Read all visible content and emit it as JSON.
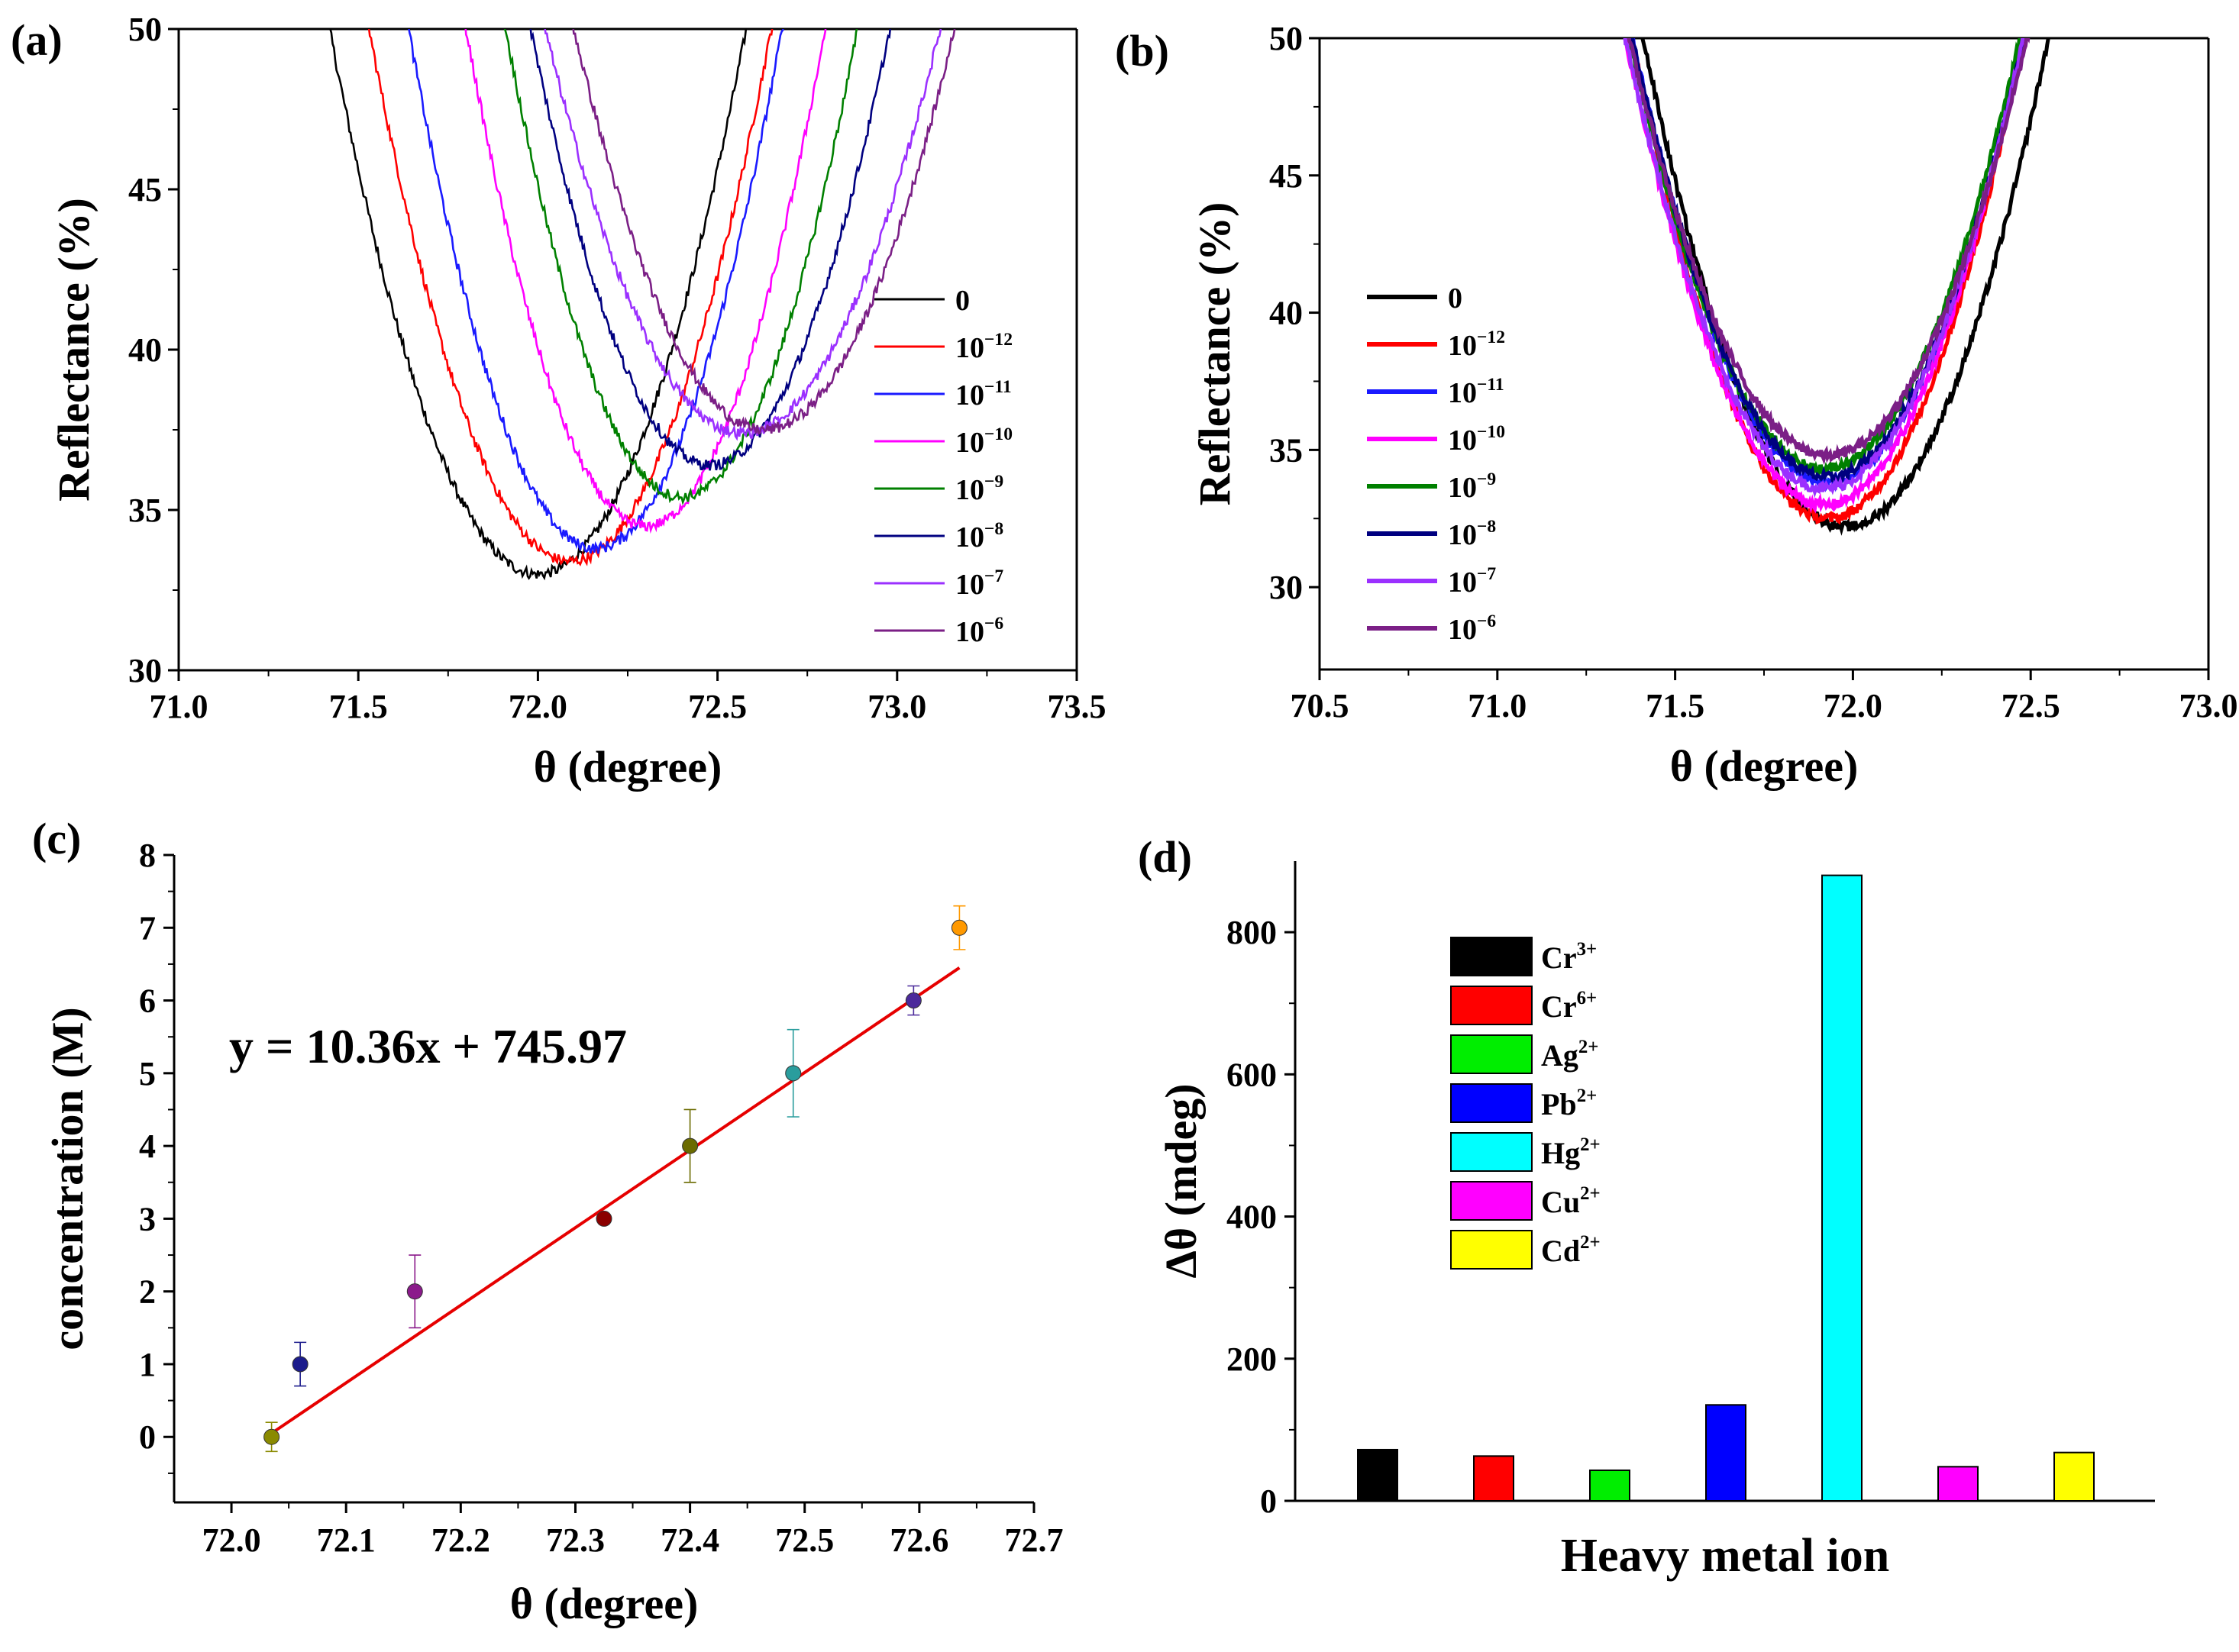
{
  "figure": {
    "description": "Four-panel figure: SPR reflectance curves and sensor responses to heavy metal ions",
    "panels": [
      "(a)",
      "(b)",
      "(c)",
      "(d)"
    ]
  },
  "colors": {
    "black": "#000000",
    "red": "#ff0000",
    "blue": "#1a1aff",
    "magenta": "#ff00ff",
    "green": "#008000",
    "navy": "#000080",
    "violet": "#9b30ff",
    "purple": "#7b1f86",
    "fit": "#e60000",
    "cyan": "#00ffff",
    "lime": "#00ee00",
    "yellow": "#ffff00"
  },
  "chart_data": [
    {
      "id": "a",
      "panel_label": "(a)",
      "type": "line",
      "xlabel": "θ (degree)",
      "ylabel": "Reflectance (%)",
      "xlim": [
        71.0,
        73.5
      ],
      "ylim": [
        30,
        50
      ],
      "xticks": [
        "71.0",
        "71.5",
        "72.0",
        "72.5",
        "73.0",
        "73.5"
      ],
      "yticks": [
        "30",
        "35",
        "40",
        "45",
        "50"
      ],
      "legend_position": "right",
      "series": [
        {
          "name": "0",
          "base": "0",
          "sup": "",
          "color": "#000000",
          "min_x": 72.0,
          "min_y": 33.0,
          "hw": 0.58
        },
        {
          "name": "10^-12",
          "base": "10",
          "sup": "−12",
          "color": "#ff0000",
          "min_x": 72.09,
          "min_y": 33.4,
          "hw": 0.56
        },
        {
          "name": "10^-11",
          "base": "10",
          "sup": "−11",
          "color": "#1a1aff",
          "min_x": 72.16,
          "min_y": 33.8,
          "hw": 0.52
        },
        {
          "name": "10^-10",
          "base": "10",
          "sup": "−10",
          "color": "#ff00ff",
          "min_x": 72.3,
          "min_y": 34.5,
          "hw": 0.5
        },
        {
          "name": "10^-9",
          "base": "10",
          "sup": "−9",
          "color": "#008000",
          "min_x": 72.4,
          "min_y": 35.4,
          "hw": 0.49
        },
        {
          "name": "10^-8",
          "base": "10",
          "sup": "−8",
          "color": "#000080",
          "min_x": 72.48,
          "min_y": 36.4,
          "hw": 0.5
        },
        {
          "name": "10^-7",
          "base": "10",
          "sup": "−7",
          "color": "#9b30ff",
          "min_x": 72.57,
          "min_y": 37.4,
          "hw": 0.55
        },
        {
          "name": "10^-6",
          "base": "10",
          "sup": "−6",
          "color": "#7b1f86",
          "min_x": 72.63,
          "min_y": 37.5,
          "hw": 0.53
        }
      ]
    },
    {
      "id": "b",
      "panel_label": "(b)",
      "type": "line",
      "xlabel": "θ (degree)",
      "ylabel": "Reflectance (%)",
      "xlim": [
        70.5,
        73.0
      ],
      "ylim": [
        27,
        50
      ],
      "xticks": [
        "70.5",
        "71.0",
        "71.5",
        "72.0",
        "72.5",
        "73.0"
      ],
      "yticks": [
        "30",
        "35",
        "40",
        "45",
        "50"
      ],
      "legend_position": "left",
      "series": [
        {
          "name": "0",
          "base": "0",
          "sup": "",
          "color": "#000000",
          "min_x": 71.98,
          "min_y": 32.2,
          "hw": 0.57
        },
        {
          "name": "10^-12",
          "base": "10",
          "sup": "−12",
          "color": "#ff0000",
          "min_x": 71.93,
          "min_y": 32.5,
          "hw": 0.55
        },
        {
          "name": "10^-11",
          "base": "10",
          "sup": "−11",
          "color": "#1a1aff",
          "min_x": 71.93,
          "min_y": 33.8,
          "hw": 0.55
        },
        {
          "name": "10^-10",
          "base": "10",
          "sup": "−10",
          "color": "#ff00ff",
          "min_x": 71.92,
          "min_y": 33.0,
          "hw": 0.56
        },
        {
          "name": "10^-9",
          "base": "10",
          "sup": "−9",
          "color": "#008000",
          "min_x": 71.92,
          "min_y": 34.3,
          "hw": 0.55
        },
        {
          "name": "10^-8",
          "base": "10",
          "sup": "−8",
          "color": "#000080",
          "min_x": 71.93,
          "min_y": 34.0,
          "hw": 0.55
        },
        {
          "name": "10^-7",
          "base": "10",
          "sup": "−7",
          "color": "#9b30ff",
          "min_x": 71.92,
          "min_y": 33.6,
          "hw": 0.56
        },
        {
          "name": "10^-6",
          "base": "10",
          "sup": "−6",
          "color": "#7b1f86",
          "min_x": 71.93,
          "min_y": 34.8,
          "hw": 0.56
        }
      ]
    },
    {
      "id": "c",
      "panel_label": "(c)",
      "type": "scatter",
      "xlabel": "θ (degree)",
      "ylabel": "concentration (M)",
      "xlim": [
        71.95,
        72.7
      ],
      "ylim": [
        -0.9,
        8
      ],
      "xticks": [
        "72.0",
        "72.1",
        "72.2",
        "72.3",
        "72.4",
        "72.5",
        "72.6",
        "72.7"
      ],
      "yticks": [
        "0",
        "1",
        "2",
        "3",
        "4",
        "5",
        "6",
        "7",
        "8"
      ],
      "equation": "y = 10.36x + 745.97",
      "fit_line": {
        "x": [
          72.035,
          72.635
        ],
        "y": [
          0.05,
          6.45
        ],
        "color": "#e60000"
      },
      "points": [
        {
          "x": 72.035,
          "y": 0,
          "err": 0.2,
          "color": "#8a8a00"
        },
        {
          "x": 72.06,
          "y": 1,
          "err": 0.3,
          "color": "#1c1c8c"
        },
        {
          "x": 72.16,
          "y": 2,
          "err": 0.5,
          "color": "#8b1a8b"
        },
        {
          "x": 72.325,
          "y": 3,
          "err": 0.05,
          "color": "#8b0000"
        },
        {
          "x": 72.4,
          "y": 4,
          "err": 0.5,
          "color": "#6b6b00"
        },
        {
          "x": 72.49,
          "y": 5,
          "err": 0.6,
          "color": "#2a9d9d"
        },
        {
          "x": 72.595,
          "y": 6,
          "err": 0.2,
          "color": "#4b2a9b"
        },
        {
          "x": 72.635,
          "y": 7,
          "err": 0.3,
          "color": "#ff9900"
        }
      ]
    },
    {
      "id": "d",
      "panel_label": "(d)",
      "type": "bar",
      "xlabel": "Heavy metal ion",
      "ylabel": "Δθ (mdeg)",
      "ylim": [
        0,
        900
      ],
      "yticks": [
        "0",
        "200",
        "400",
        "600",
        "800"
      ],
      "categories": [
        {
          "base": "Cr",
          "sup": "3+",
          "value": 72,
          "color": "#000000"
        },
        {
          "base": "Cr",
          "sup": "6+",
          "value": 63,
          "color": "#ff0000"
        },
        {
          "base": "Ag",
          "sup": "2+",
          "value": 43,
          "color": "#00ee00"
        },
        {
          "base": "Pb",
          "sup": "2+",
          "value": 135,
          "color": "#0000ff"
        },
        {
          "base": "Hg",
          "sup": "2+",
          "value": 880,
          "color": "#00ffff"
        },
        {
          "base": "Cu",
          "sup": "2+",
          "value": 48,
          "color": "#ff00ff"
        },
        {
          "base": "Cd",
          "sup": "2+",
          "value": 68,
          "color": "#ffff00"
        }
      ]
    }
  ]
}
